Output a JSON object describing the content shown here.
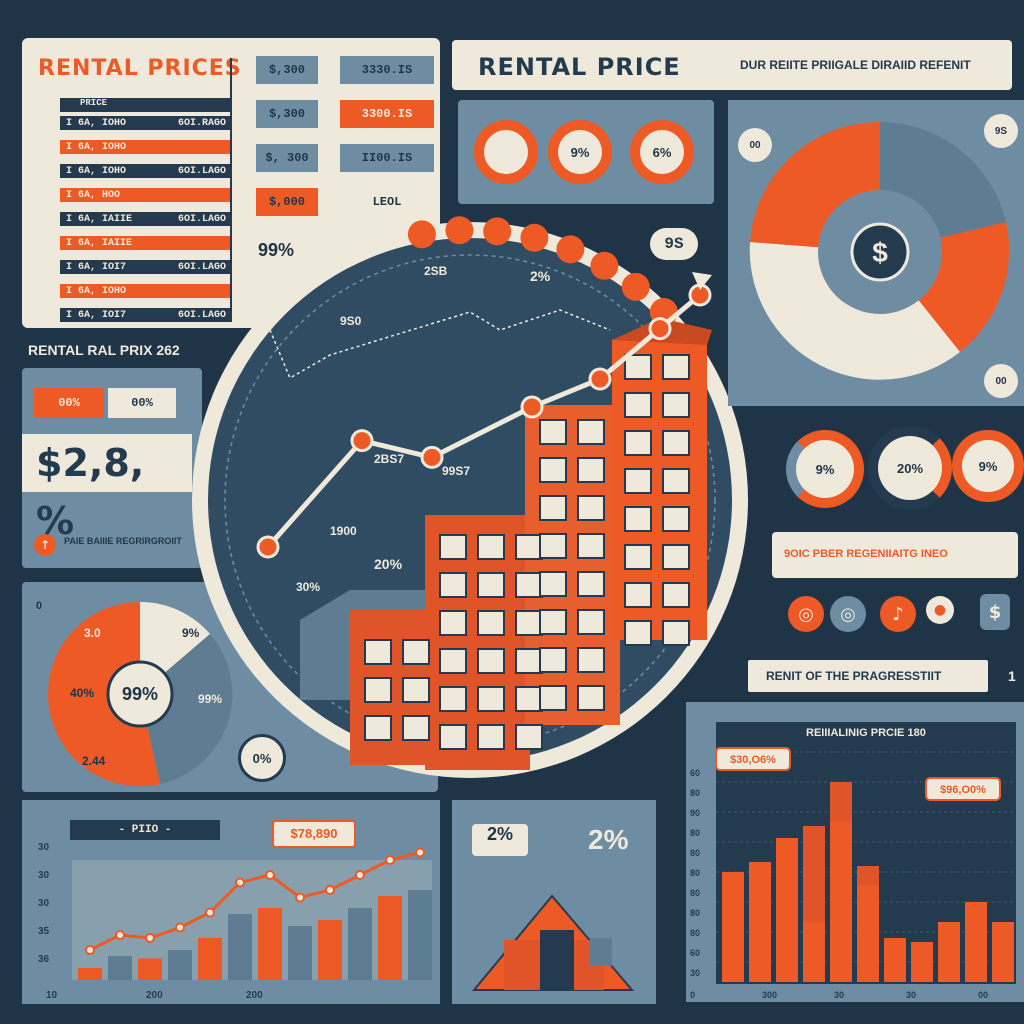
{
  "header": {
    "main_title": "RENTAL PRICE",
    "subtitle": "DUR REIITE PRIIGALE DIRAIID REFENIT"
  },
  "prices_table": {
    "title": "RENTAL  PRICES",
    "header": "PRICE",
    "rows": [
      {
        "left": "I 6A, IOHO",
        "right": "6OI.RAGO"
      },
      {
        "left": "I 6A, IOHO",
        "right": ""
      },
      {
        "left": "I 6A, IOHO",
        "right": "6OI.LAGO"
      },
      {
        "left": "I 6A, HOO",
        "right": ""
      },
      {
        "left": "I 6A, IAIIE",
        "right": "6OI.LAGO"
      },
      {
        "left": "I 6A, IAIIE",
        "right": ""
      },
      {
        "left": "I 6A, IOI7",
        "right": "6OI.LAGO"
      },
      {
        "left": "I 6A, IOHO",
        "right": ""
      },
      {
        "left": "I 6A, IOI7",
        "right": "6OI.LAGO"
      }
    ],
    "tags": [
      {
        "left": "$,300",
        "right": "3330.IS"
      },
      {
        "left": "$,300",
        "right": "3300.IS"
      },
      {
        "left": "$, 300",
        "right": "II00.IS"
      },
      {
        "left": "$,000",
        "right": "LEOL"
      }
    ],
    "percent": "99%"
  },
  "index_panel": {
    "title": "RENTAL RAL PRIX 262",
    "pct_a": "00%",
    "pct_b": "00%",
    "big_value": "$2,8, %",
    "note": "PAIE BAIIIE REGRIRGROIIT",
    "arrow_icon": "arrow-up-icon"
  },
  "center": {
    "labels": [
      "2SB",
      "2%",
      "9S0",
      "2BS7",
      "99S7",
      "1900",
      "20%",
      "30%"
    ],
    "badge": "9S",
    "trend_color": "#ee5a25",
    "building_color": "#e0542a"
  },
  "gauges_top": [
    "",
    "9%",
    "6%"
  ],
  "pie_right": {
    "center_icon": "dollar-icon",
    "corner_tl": "00",
    "corner_tr": "9S",
    "corner_br": "00"
  },
  "gauges_right": [
    "9%",
    "20%",
    "9%"
  ],
  "info_strip": {
    "label": "9OIC PBER REGENIIAITG INEO",
    "icons": [
      "coin-icon",
      "coin-icon",
      "music-note-icon",
      "bulb-icon",
      "dollar-icon"
    ]
  },
  "progress_label": "RENIT OF THE PRAGRESSTIIT",
  "progress_side": "1",
  "left_pie": {
    "center": "99%",
    "labels": [
      "3.0",
      "9%",
      "40%",
      "99%",
      "2.44"
    ],
    "badge": "0%",
    "corner": "0"
  },
  "house": {
    "pct_left": "2%",
    "pct_right": "2%"
  },
  "bottom_left_chart": {
    "legend": "- PIIO -",
    "callout": "$78,890",
    "axis_bottom": [
      "10",
      "200",
      "200"
    ],
    "axis_left": [
      "30",
      "30",
      "30",
      "35",
      "36"
    ]
  },
  "chart_data": [
    {
      "type": "line",
      "title": "",
      "x": [
        1,
        2,
        3,
        4,
        5,
        6,
        7
      ],
      "series": [
        {
          "values": [
            10,
            48,
            42,
            60,
            70,
            88,
            100
          ]
        }
      ]
    },
    {
      "type": "pie",
      "title": "",
      "values": [
        40,
        20,
        22,
        18
      ],
      "colors": [
        "#ee5a25",
        "#6f8da2",
        "#ee5a25",
        "#efe9dc"
      ]
    },
    {
      "type": "bar",
      "title": "REIIIALINIG PRCIE 180",
      "categories": [
        "1",
        "2",
        "3",
        "4",
        "5",
        "6",
        "7",
        "8",
        "9",
        "10",
        "11"
      ],
      "series": [
        {
          "values": [
            55,
            60,
            72,
            30,
            80,
            48,
            22,
            20,
            30,
            40,
            30
          ]
        },
        {
          "values": [
            0,
            0,
            0,
            78,
            100,
            58,
            0,
            0,
            0,
            0,
            0
          ]
        }
      ],
      "ylabel_ticks": [
        "60",
        "80",
        "90",
        "80",
        "80",
        "80",
        "80",
        "80",
        "80",
        "60",
        "30"
      ],
      "xlabel_ticks": [
        "0",
        "300",
        "30",
        "30",
        "00"
      ],
      "callouts": [
        "$30,O6%",
        "$96,O0%"
      ]
    },
    {
      "type": "bar",
      "title": "",
      "categories": [
        "1",
        "2",
        "3",
        "4",
        "5",
        "6",
        "7",
        "8",
        "9",
        "10",
        "11",
        "12"
      ],
      "values": [
        10,
        20,
        18,
        25,
        35,
        55,
        60,
        45,
        50,
        60,
        70,
        75
      ]
    }
  ]
}
